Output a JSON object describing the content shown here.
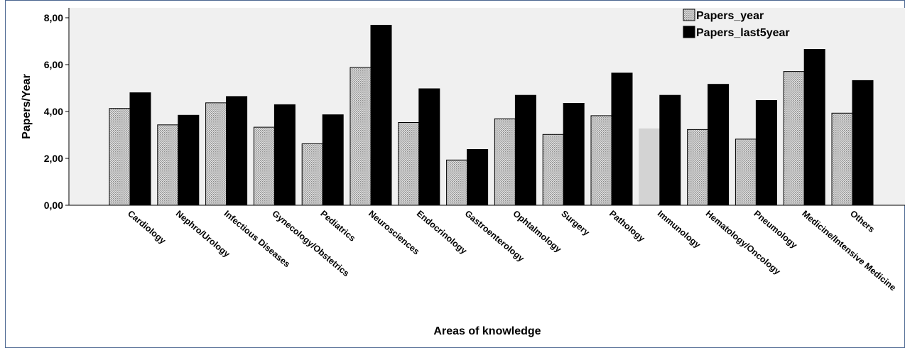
{
  "chart_data": {
    "type": "bar",
    "xlabel": "Areas of knowledge",
    "ylabel": "Papers/Year",
    "ylim": [
      0,
      8
    ],
    "yticks": [
      "0,00",
      "2,00",
      "4,00",
      "6,00",
      "8,00"
    ],
    "ytick_values": [
      0,
      2,
      4,
      6,
      8
    ],
    "legend_position": "top-right",
    "grid": false,
    "categories": [
      "Cardiology",
      "Nephro/Urology",
      "Infectious Diseases",
      "Gynecology/Obstetrics",
      "Pediatrics",
      "Neurosciences",
      "Endocrinology",
      "Gastroenterology",
      "Ophtalmology",
      "Surgery",
      "Pathology",
      "Immunology",
      "Hematology/Oncology",
      "Pneumology",
      "Medicine/Intensive Medicine",
      "Others"
    ],
    "series": [
      {
        "name": "Papers_year",
        "color": "#c8c8c8",
        "pattern": "dotted",
        "values": [
          4.13,
          3.43,
          4.37,
          3.33,
          2.62,
          5.88,
          3.53,
          1.93,
          3.69,
          3.02,
          3.82,
          3.26,
          3.23,
          2.82,
          5.71,
          3.93
        ]
      },
      {
        "name": "Papers_last5year",
        "color": "#000000",
        "pattern": "solid",
        "values": [
          4.8,
          3.84,
          4.64,
          4.29,
          3.86,
          7.68,
          4.97,
          2.38,
          4.69,
          4.35,
          5.64,
          4.69,
          5.16,
          4.47,
          6.65,
          5.32
        ]
      }
    ],
    "highlight": {
      "category": "Immunology",
      "series": "Papers_year",
      "color": "#d3d3d3"
    }
  },
  "colors": {
    "plot_background": "#f0f0f0",
    "frame": "#4a6690",
    "axis": "#000000"
  }
}
